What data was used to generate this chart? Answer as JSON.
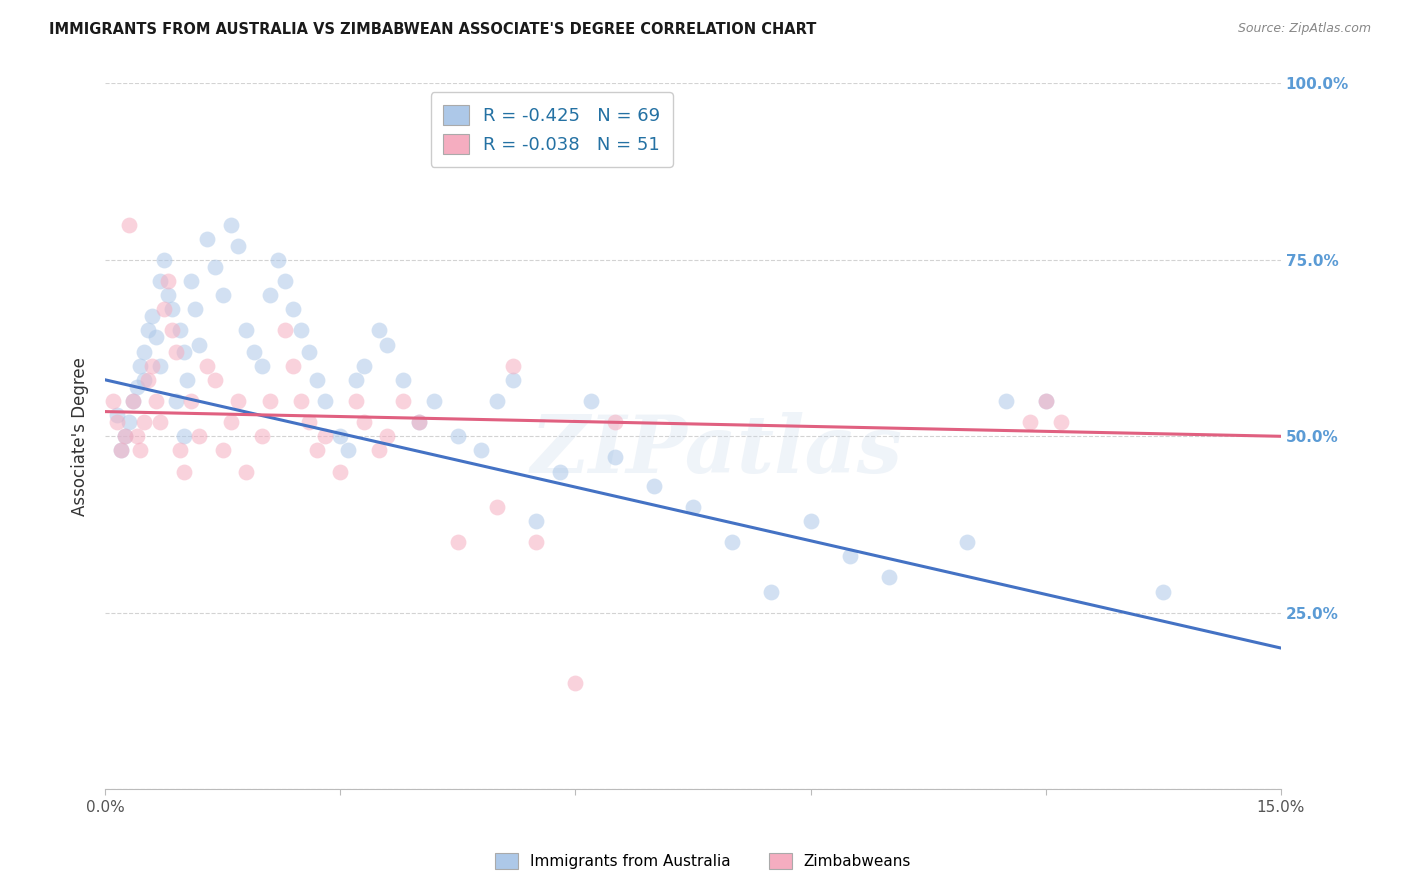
{
  "title": "IMMIGRANTS FROM AUSTRALIA VS ZIMBABWEAN ASSOCIATE'S DEGREE CORRELATION CHART",
  "source": "Source: ZipAtlas.com",
  "ylabel": "Associate's Degree",
  "legend_label_blue": "Immigrants from Australia",
  "legend_label_pink": "Zimbabweans",
  "legend_R_blue": "-0.425",
  "legend_N_blue": "69",
  "legend_R_pink": "-0.038",
  "legend_N_pink": "51",
  "watermark": "ZIPatlas",
  "x_min": 0.0,
  "x_max": 15.0,
  "y_min": 0.0,
  "y_max": 100.0,
  "x_ticks": [
    0.0,
    3.0,
    6.0,
    9.0,
    12.0,
    15.0
  ],
  "y_ticks": [
    0.0,
    25.0,
    50.0,
    75.0,
    100.0
  ],
  "x_tick_labels": [
    "0.0%",
    "",
    "",
    "",
    "",
    "15.0%"
  ],
  "y_tick_labels": [
    "",
    "25.0%",
    "50.0%",
    "75.0%",
    "100.0%"
  ],
  "blue_color": "#adc8e8",
  "pink_color": "#f5adc0",
  "blue_line_color": "#4472c4",
  "pink_line_color": "#e06080",
  "blue_scatter_x": [
    0.15,
    0.2,
    0.25,
    0.3,
    0.35,
    0.4,
    0.45,
    0.5,
    0.5,
    0.55,
    0.6,
    0.65,
    0.7,
    0.7,
    0.75,
    0.8,
    0.85,
    0.9,
    0.95,
    1.0,
    1.0,
    1.05,
    1.1,
    1.15,
    1.2,
    1.3,
    1.4,
    1.5,
    1.6,
    1.7,
    1.8,
    1.9,
    2.0,
    2.1,
    2.2,
    2.3,
    2.4,
    2.5,
    2.6,
    2.7,
    2.8,
    3.0,
    3.1,
    3.2,
    3.3,
    3.5,
    3.6,
    3.8,
    4.0,
    4.2,
    4.5,
    4.8,
    5.0,
    5.2,
    5.5,
    5.8,
    6.2,
    6.5,
    7.0,
    7.5,
    8.0,
    8.5,
    9.0,
    9.5,
    10.0,
    11.0,
    11.5,
    12.0,
    13.5
  ],
  "blue_scatter_y": [
    53,
    48,
    50,
    52,
    55,
    57,
    60,
    58,
    62,
    65,
    67,
    64,
    60,
    72,
    75,
    70,
    68,
    55,
    65,
    50,
    62,
    58,
    72,
    68,
    63,
    78,
    74,
    70,
    80,
    77,
    65,
    62,
    60,
    70,
    75,
    72,
    68,
    65,
    62,
    58,
    55,
    50,
    48,
    58,
    60,
    65,
    63,
    58,
    52,
    55,
    50,
    48,
    55,
    58,
    38,
    45,
    55,
    47,
    43,
    40,
    35,
    28,
    38,
    33,
    30,
    35,
    55,
    55,
    28
  ],
  "pink_scatter_x": [
    0.1,
    0.15,
    0.2,
    0.25,
    0.3,
    0.35,
    0.4,
    0.45,
    0.5,
    0.55,
    0.6,
    0.65,
    0.7,
    0.75,
    0.8,
    0.85,
    0.9,
    0.95,
    1.0,
    1.1,
    1.2,
    1.3,
    1.4,
    1.5,
    1.6,
    1.7,
    1.8,
    2.0,
    2.1,
    2.3,
    2.4,
    2.5,
    2.6,
    2.7,
    2.8,
    3.0,
    3.2,
    3.3,
    3.5,
    3.6,
    3.8,
    4.0,
    4.5,
    5.0,
    5.2,
    5.5,
    6.0,
    6.5,
    11.8,
    12.0,
    12.2
  ],
  "pink_scatter_y": [
    55,
    52,
    48,
    50,
    80,
    55,
    50,
    48,
    52,
    58,
    60,
    55,
    52,
    68,
    72,
    65,
    62,
    48,
    45,
    55,
    50,
    60,
    58,
    48,
    52,
    55,
    45,
    50,
    55,
    65,
    60,
    55,
    52,
    48,
    50,
    45,
    55,
    52,
    48,
    50,
    55,
    52,
    35,
    40,
    60,
    35,
    15,
    52,
    52,
    55,
    52
  ],
  "blue_trendline_x": [
    0.0,
    15.0
  ],
  "blue_trendline_y": [
    58.0,
    20.0
  ],
  "pink_trendline_x": [
    0.0,
    15.0
  ],
  "pink_trendline_y": [
    53.5,
    50.0
  ],
  "background_color": "#ffffff",
  "grid_color": "#c8c8c8",
  "title_color": "#1a1a1a",
  "source_color": "#888888",
  "right_axis_color": "#5b9bd5",
  "dot_size": 130,
  "dot_alpha": 0.55
}
